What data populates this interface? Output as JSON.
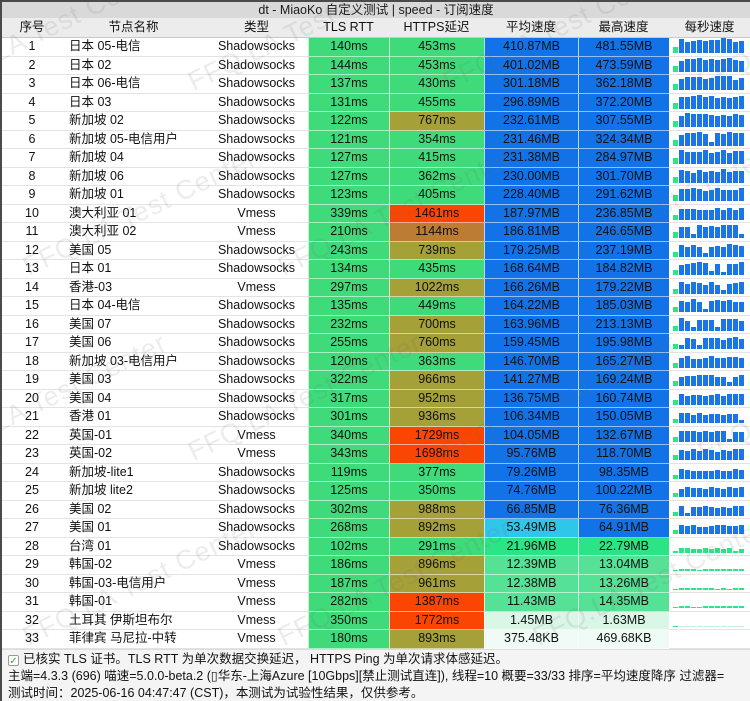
{
  "title": "dt - MiaoKo 自定义测试 | speed - 订阅速度",
  "watermark": "FFQ.LA Test Center",
  "columns": [
    "序号",
    "节点名称",
    "类型",
    "TLS RTT",
    "HTTPS延迟",
    "平均速度",
    "最高速度",
    "每秒速度"
  ],
  "palette": {
    "window_border": "#4a4a4a",
    "titlebar_bg": "#d9d9d9",
    "header_bg": "#ececec",
    "footer_bg": "#f4f4f4",
    "latency_green": "#3fdb7a",
    "latency_olive": "#a5a038",
    "latency_amber": "#bd7c33",
    "latency_red": "#fb4503",
    "speed_blue": "#1273e8",
    "speed_cyan": "#2ec6e9",
    "speed_green_bright": "#2be485",
    "speed_green_mid": "#55e196",
    "speed_green_pale": "#d9f6e7",
    "speed_near_white": "#effbf4",
    "spark_blue": "#1b74e8",
    "spark_green": "#2ee483",
    "spark_pale": "#bfeed3",
    "check_green": "#2ea83c"
  },
  "rows": [
    {
      "no": 1,
      "name": "日本 05-电信",
      "type": "Shadowsocks",
      "tls": "140ms",
      "tls_v": 140,
      "https": "453ms",
      "https_v": 453,
      "avg": "410.87MB",
      "avg_v": 410.87,
      "max": "481.55MB",
      "max_v": 481.55,
      "spark": {
        "c": "blue",
        "lv": 0.93
      }
    },
    {
      "no": 2,
      "name": "日本 02",
      "type": "Shadowsocks",
      "tls": "144ms",
      "tls_v": 144,
      "https": "453ms",
      "https_v": 453,
      "avg": "401.02MB",
      "avg_v": 401.02,
      "max": "473.59MB",
      "max_v": 473.59,
      "spark": {
        "c": "blue",
        "lv": 0.9
      }
    },
    {
      "no": 3,
      "name": "日本 06-电信",
      "type": "Shadowsocks",
      "tls": "137ms",
      "tls_v": 137,
      "https": "430ms",
      "https_v": 430,
      "avg": "301.18MB",
      "avg_v": 301.18,
      "max": "362.18MB",
      "max_v": 362.18,
      "spark": {
        "c": "blue",
        "lv": 0.86
      }
    },
    {
      "no": 4,
      "name": "日本 03",
      "type": "Shadowsocks",
      "tls": "131ms",
      "tls_v": 131,
      "https": "455ms",
      "https_v": 455,
      "avg": "296.89MB",
      "avg_v": 296.89,
      "max": "372.20MB",
      "max_v": 372.2,
      "spark": {
        "c": "blue",
        "lv": 0.87
      }
    },
    {
      "no": 5,
      "name": "新加坡 02",
      "type": "Shadowsocks",
      "tls": "122ms",
      "tls_v": 122,
      "https": "767ms",
      "https_v": 767,
      "avg": "232.61MB",
      "avg_v": 232.61,
      "max": "307.55MB",
      "max_v": 307.55,
      "spark": {
        "c": "blue",
        "lv": 0.88
      }
    },
    {
      "no": 6,
      "name": "新加坡 05-电信用户",
      "type": "Shadowsocks",
      "tls": "121ms",
      "tls_v": 121,
      "https": "354ms",
      "https_v": 354,
      "avg": "231.46MB",
      "avg_v": 231.46,
      "max": "324.34MB",
      "max_v": 324.34,
      "spark": {
        "c": "blue",
        "lv": 0.9
      }
    },
    {
      "no": 7,
      "name": "新加坡 04",
      "type": "Shadowsocks",
      "tls": "127ms",
      "tls_v": 127,
      "https": "415ms",
      "https_v": 415,
      "avg": "231.38MB",
      "avg_v": 231.38,
      "max": "284.97MB",
      "max_v": 284.97,
      "spark": {
        "c": "blue",
        "lv": 0.88
      }
    },
    {
      "no": 8,
      "name": "新加坡 06",
      "type": "Shadowsocks",
      "tls": "127ms",
      "tls_v": 127,
      "https": "362ms",
      "https_v": 362,
      "avg": "230.00MB",
      "avg_v": 230.0,
      "max": "301.70MB",
      "max_v": 301.7,
      "spark": {
        "c": "blue",
        "lv": 0.85
      }
    },
    {
      "no": 9,
      "name": "新加坡 01",
      "type": "Shadowsocks",
      "tls": "123ms",
      "tls_v": 123,
      "https": "405ms",
      "https_v": 405,
      "avg": "228.40MB",
      "avg_v": 228.4,
      "max": "291.62MB",
      "max_v": 291.62,
      "spark": {
        "c": "blue",
        "lv": 0.85
      }
    },
    {
      "no": 10,
      "name": "澳大利亚 01",
      "type": "Vmess",
      "tls": "339ms",
      "tls_v": 339,
      "https": "1461ms",
      "https_v": 1461,
      "avg": "187.97MB",
      "avg_v": 187.97,
      "max": "236.85MB",
      "max_v": 236.85,
      "spark": {
        "c": "blue",
        "lv": 0.8
      }
    },
    {
      "no": 11,
      "name": "澳大利亚 02",
      "type": "Vmess",
      "tls": "210ms",
      "tls_v": 210,
      "https": "1144ms",
      "https_v": 1144,
      "avg": "186.81MB",
      "avg_v": 186.81,
      "max": "246.65MB",
      "max_v": 246.65,
      "spark": {
        "c": "blue",
        "lv": 0.82
      }
    },
    {
      "no": 12,
      "name": "美国 05",
      "type": "Shadowsocks",
      "tls": "243ms",
      "tls_v": 243,
      "https": "739ms",
      "https_v": 739,
      "avg": "179.25MB",
      "avg_v": 179.25,
      "max": "237.19MB",
      "max_v": 237.19,
      "spark": {
        "c": "blue",
        "lv": 0.8
      }
    },
    {
      "no": 13,
      "name": "日本 01",
      "type": "Shadowsocks",
      "tls": "134ms",
      "tls_v": 134,
      "https": "435ms",
      "https_v": 435,
      "avg": "168.64MB",
      "avg_v": 168.64,
      "max": "184.82MB",
      "max_v": 184.82,
      "spark": {
        "c": "blue",
        "lv": 0.8
      }
    },
    {
      "no": 14,
      "name": "香港-03",
      "type": "Vmess",
      "tls": "297ms",
      "tls_v": 297,
      "https": "1022ms",
      "https_v": 1022,
      "avg": "166.26MB",
      "avg_v": 166.26,
      "max": "179.22MB",
      "max_v": 179.22,
      "spark": {
        "c": "blue",
        "lv": 0.78
      }
    },
    {
      "no": 15,
      "name": "日本 04-电信",
      "type": "Shadowsocks",
      "tls": "135ms",
      "tls_v": 135,
      "https": "449ms",
      "https_v": 449,
      "avg": "164.22MB",
      "avg_v": 164.22,
      "max": "185.03MB",
      "max_v": 185.03,
      "spark": {
        "c": "blue",
        "lv": 0.8
      }
    },
    {
      "no": 16,
      "name": "美国 07",
      "type": "Shadowsocks",
      "tls": "232ms",
      "tls_v": 232,
      "https": "700ms",
      "https_v": 700,
      "avg": "163.96MB",
      "avg_v": 163.96,
      "max": "213.13MB",
      "max_v": 213.13,
      "spark": {
        "c": "blue",
        "lv": 0.78
      }
    },
    {
      "no": 17,
      "name": "美国 06",
      "type": "Shadowsocks",
      "tls": "255ms",
      "tls_v": 255,
      "https": "760ms",
      "https_v": 760,
      "avg": "159.45MB",
      "avg_v": 159.45,
      "max": "195.98MB",
      "max_v": 195.98,
      "spark": {
        "c": "blue",
        "lv": 0.75
      }
    },
    {
      "no": 18,
      "name": "新加坡 03-电信用户",
      "type": "Shadowsocks",
      "tls": "120ms",
      "tls_v": 120,
      "https": "363ms",
      "https_v": 363,
      "avg": "146.70MB",
      "avg_v": 146.7,
      "max": "165.27MB",
      "max_v": 165.27,
      "spark": {
        "c": "blue",
        "lv": 0.73
      }
    },
    {
      "no": 19,
      "name": "美国 03",
      "type": "Shadowsocks",
      "tls": "322ms",
      "tls_v": 322,
      "https": "966ms",
      "https_v": 966,
      "avg": "141.27MB",
      "avg_v": 141.27,
      "max": "169.24MB",
      "max_v": 169.24,
      "spark": {
        "c": "blue",
        "lv": 0.72
      }
    },
    {
      "no": 20,
      "name": "美国 04",
      "type": "Shadowsocks",
      "tls": "317ms",
      "tls_v": 317,
      "https": "952ms",
      "https_v": 952,
      "avg": "136.75MB",
      "avg_v": 136.75,
      "max": "160.74MB",
      "max_v": 160.74,
      "spark": {
        "c": "blue",
        "lv": 0.7
      }
    },
    {
      "no": 21,
      "name": "香港 01",
      "type": "Shadowsocks",
      "tls": "301ms",
      "tls_v": 301,
      "https": "936ms",
      "https_v": 936,
      "avg": "106.34MB",
      "avg_v": 106.34,
      "max": "150.05MB",
      "max_v": 150.05,
      "spark": {
        "c": "blue",
        "lv": 0.65
      }
    },
    {
      "no": 22,
      "name": "英国-01",
      "type": "Vmess",
      "tls": "340ms",
      "tls_v": 340,
      "https": "1729ms",
      "https_v": 1729,
      "avg": "104.05MB",
      "avg_v": 104.05,
      "max": "132.67MB",
      "max_v": 132.67,
      "spark": {
        "c": "blue",
        "lv": 0.72
      }
    },
    {
      "no": 23,
      "name": "英国-02",
      "type": "Vmess",
      "tls": "343ms",
      "tls_v": 343,
      "https": "1698ms",
      "https_v": 1698,
      "avg": "95.76MB",
      "avg_v": 95.76,
      "max": "118.70MB",
      "max_v": 118.7,
      "spark": {
        "c": "blue",
        "lv": 0.7
      }
    },
    {
      "no": 24,
      "name": "新加坡-lite1",
      "type": "Shadowsocks",
      "tls": "119ms",
      "tls_v": 119,
      "https": "377ms",
      "https_v": 377,
      "avg": "79.26MB",
      "avg_v": 79.26,
      "max": "98.35MB",
      "max_v": 98.35,
      "spark": {
        "c": "blue",
        "lv": 0.6
      }
    },
    {
      "no": 25,
      "name": "新加坡 lite2",
      "type": "Shadowsocks",
      "tls": "125ms",
      "tls_v": 125,
      "https": "350ms",
      "https_v": 350,
      "avg": "74.76MB",
      "avg_v": 74.76,
      "max": "100.22MB",
      "max_v": 100.22,
      "spark": {
        "c": "blue",
        "lv": 0.62
      }
    },
    {
      "no": 26,
      "name": "美国 02",
      "type": "Shadowsocks",
      "tls": "302ms",
      "tls_v": 302,
      "https": "988ms",
      "https_v": 988,
      "avg": "66.85MB",
      "avg_v": 66.85,
      "max": "76.36MB",
      "max_v": 76.36,
      "spark": {
        "c": "blue",
        "lv": 0.6
      }
    },
    {
      "no": 27,
      "name": "美国 01",
      "type": "Shadowsocks",
      "tls": "268ms",
      "tls_v": 268,
      "https": "892ms",
      "https_v": 892,
      "avg": "53.49MB",
      "avg_v": 53.49,
      "max": "64.91MB",
      "max_v": 64.91,
      "spark": {
        "c": "blue",
        "lv": 0.58
      }
    },
    {
      "no": 28,
      "name": "台湾 01",
      "type": "Shadowsocks",
      "tls": "102ms",
      "tls_v": 102,
      "https": "291ms",
      "https_v": 291,
      "avg": "21.96MB",
      "avg_v": 21.96,
      "max": "22.79MB",
      "max_v": 22.79,
      "spark": {
        "c": "green",
        "lv": 0.33
      }
    },
    {
      "no": 29,
      "name": "韩国-02",
      "type": "Vmess",
      "tls": "186ms",
      "tls_v": 186,
      "https": "896ms",
      "https_v": 896,
      "avg": "12.39MB",
      "avg_v": 12.39,
      "max": "13.04MB",
      "max_v": 13.04,
      "spark": {
        "c": "green",
        "lv": 0.15
      }
    },
    {
      "no": 30,
      "name": "韩国-03-电信用户",
      "type": "Vmess",
      "tls": "187ms",
      "tls_v": 187,
      "https": "961ms",
      "https_v": 961,
      "avg": "12.38MB",
      "avg_v": 12.38,
      "max": "13.26MB",
      "max_v": 13.26,
      "spark": {
        "c": "green",
        "lv": 0.14
      }
    },
    {
      "no": 31,
      "name": "韩国-01",
      "type": "Vmess",
      "tls": "282ms",
      "tls_v": 282,
      "https": "1387ms",
      "https_v": 1387,
      "avg": "11.43MB",
      "avg_v": 11.43,
      "max": "14.35MB",
      "max_v": 14.35,
      "spark": {
        "c": "green",
        "lv": 0.14
      }
    },
    {
      "no": 32,
      "name": "土耳其 伊斯坦布尔",
      "type": "Vmess",
      "tls": "350ms",
      "tls_v": 350,
      "https": "1772ms",
      "https_v": 1772,
      "avg": "1.45MB",
      "avg_v": 1.45,
      "max": "1.63MB",
      "max_v": 1.63,
      "spark": {
        "c": "pale",
        "lv": 0.06
      }
    },
    {
      "no": 33,
      "name": "菲律宾 马尼拉-中转",
      "type": "Vmess",
      "tls": "180ms",
      "tls_v": 180,
      "https": "893ms",
      "https_v": 893,
      "avg": "375.48KB",
      "avg_v": 0.37,
      "max": "469.68KB",
      "max_v": 0.46,
      "spark": {
        "c": "none",
        "lv": 0.0
      }
    }
  ],
  "footer": {
    "check_glyph": "✓",
    "line1": "已核实 TLS 证书。TLS RTT 为单次数据交换延迟， HTTPS Ping 为单次请求体感延迟。",
    "line2": "主端=4.3.3 (696) 喵速=5.0.0-beta.2 (▯华东-上海Azure [10Gbps][禁止测试直连]), 线程=10 概要=33/33 排序=平均速度降序 过滤器=",
    "line3": "测试时间：2025-06-16 04:47:47 (CST)，本测试为试验性结果，仅供参考。"
  }
}
